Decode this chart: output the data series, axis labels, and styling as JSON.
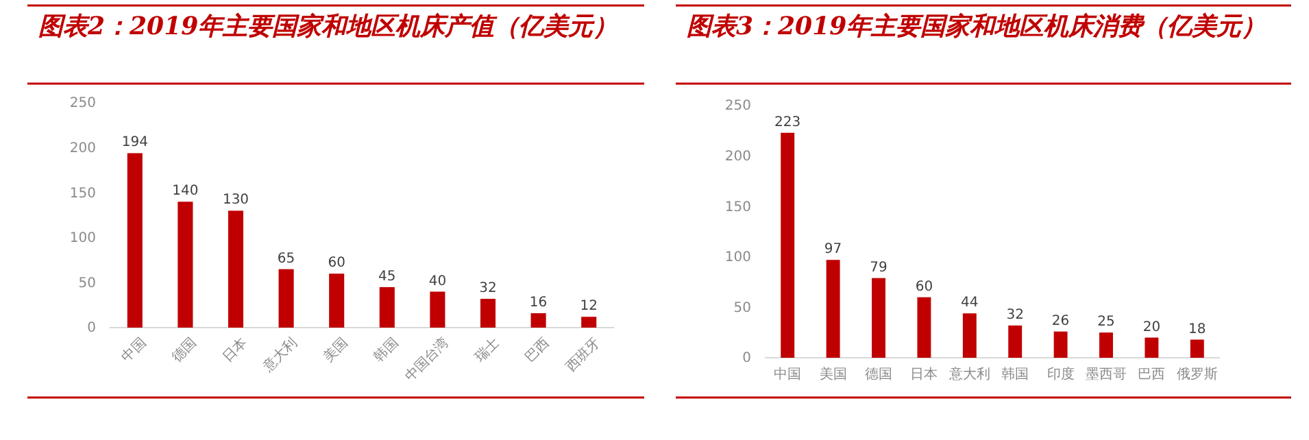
{
  "chart_data": [
    {
      "type": "bar",
      "title": "图表2：2019年主要国家和地区机床产值（亿美元）",
      "categories": [
        "中国",
        "德国",
        "日本",
        "意大利",
        "美国",
        "韩国",
        "中国台湾",
        "瑞士",
        "巴西",
        "西班牙"
      ],
      "values": [
        194,
        140,
        130,
        65,
        60,
        45,
        40,
        32,
        16,
        12
      ],
      "color": "#c00000",
      "ylim": [
        0,
        250
      ],
      "yticks": [
        0,
        50,
        100,
        150,
        200,
        250
      ],
      "data_labels": true,
      "grid": false
    },
    {
      "type": "bar",
      "title": "图表3：2019年主要国家和地区机床消费（亿美元）",
      "categories": [
        "中国",
        "美国",
        "德国",
        "日本",
        "意大利",
        "韩国",
        "印度",
        "墨西哥",
        "巴西",
        "俄罗斯"
      ],
      "values": [
        223,
        97,
        79,
        60,
        44,
        32,
        26,
        25,
        20,
        18
      ],
      "color": "#c00000",
      "ylim": [
        0,
        250
      ],
      "yticks": [
        0,
        50,
        100,
        150,
        200,
        250
      ],
      "data_labels": true,
      "grid": false
    }
  ]
}
